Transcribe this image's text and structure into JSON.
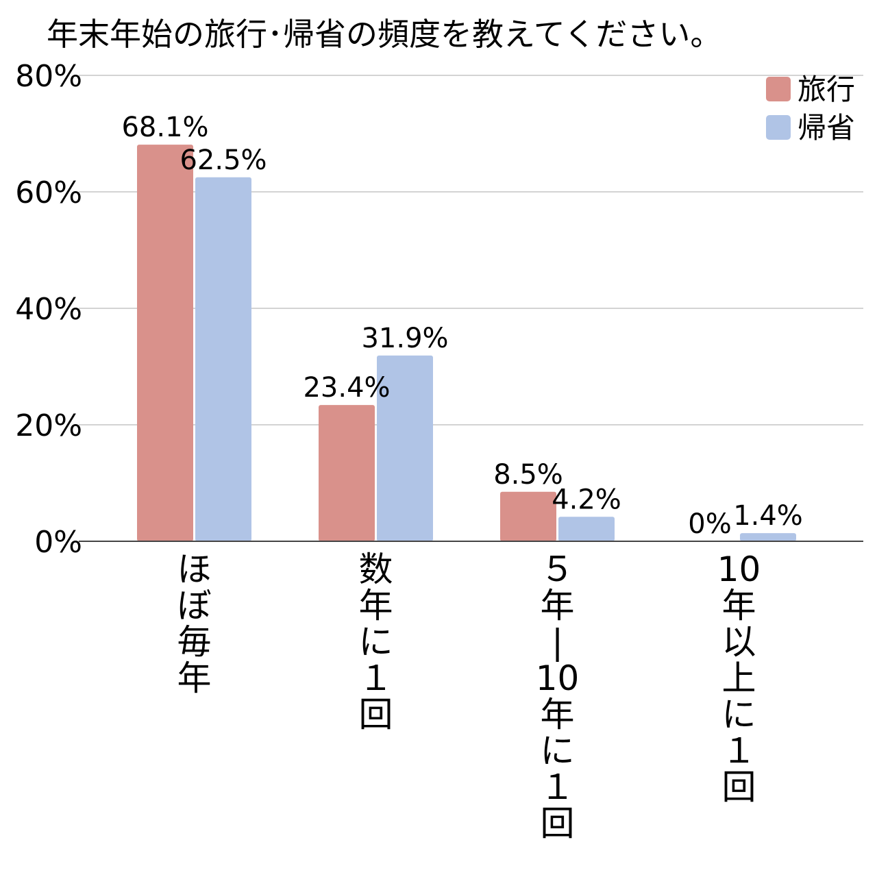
{
  "chart_data": {
    "type": "bar",
    "title": "年末年始の旅行･帰省の頻度を教えてください。",
    "xlabel": "",
    "ylabel": "",
    "categories": [
      "ほぼ毎年",
      "数年に１回",
      "５年|10年に１回",
      "10年以上に１回"
    ],
    "category_lines": [
      [
        "ほ",
        "ぼ",
        "毎",
        "年"
      ],
      [
        "数",
        "年",
        "に",
        "１",
        "回"
      ],
      [
        "５",
        "年",
        "|",
        "10",
        "年",
        "に",
        "１",
        "回"
      ],
      [
        "10",
        "年",
        "以",
        "上",
        "に",
        "１",
        "回"
      ]
    ],
    "series": [
      {
        "name": "旅行",
        "color": "#d9918b",
        "values": [
          68.1,
          23.4,
          8.5,
          0
        ],
        "labels": [
          "68.1%",
          "23.4%",
          "8.5%",
          "0%"
        ]
      },
      {
        "name": "帰省",
        "color": "#b0c4e6",
        "values": [
          62.5,
          31.9,
          4.2,
          1.4
        ],
        "labels": [
          "62.5%",
          "31.9%",
          "4.2%",
          "1.4%"
        ]
      }
    ],
    "ylim": [
      0,
      80
    ],
    "yticks": [
      "0%",
      "20%",
      "40%",
      "60%",
      "80%"
    ],
    "grid": true,
    "legend_position": "top-right",
    "gridline_color": "#d3d3d3",
    "axis_color": "#444444"
  }
}
